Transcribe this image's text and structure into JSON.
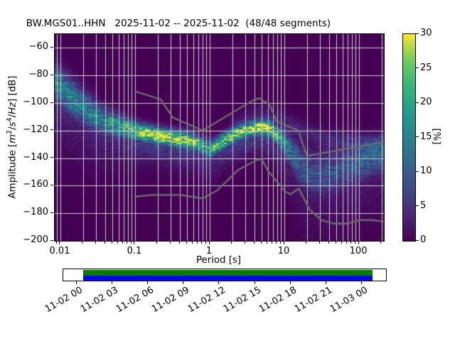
{
  "title": "BW.MGS01..HHN   2025-11-02 -- 2025-11-02  (48/48 segments)",
  "axes": {
    "xlabel": "Period [s]",
    "ylabel": {
      "prefix": "Amplitude [",
      "m": "m",
      "m_exp": "2",
      "slash1": "/",
      "s": "s",
      "s_exp": "4",
      "slash2": "/",
      "hz": "Hz",
      "suffix": "] [dB]"
    },
    "x_tick_labels": [
      "0.01",
      "0.1",
      "1",
      "10",
      "100"
    ],
    "y_tick_labels": [
      "−60",
      "−80",
      "−100",
      "−120",
      "−140",
      "−160",
      "−180",
      "−200"
    ]
  },
  "colorbar": {
    "label": "[%]",
    "tick_labels": [
      "0",
      "5",
      "10",
      "15",
      "20",
      "25",
      "30"
    ],
    "min": 0,
    "max": 30
  },
  "timeline": {
    "tick_labels": [
      "11-02 00",
      "11-02 03",
      "11-02 06",
      "11-02 09",
      "11-02 12",
      "11-02 15",
      "11-02 18",
      "11-02 21",
      "11-03 00"
    ],
    "coverage_top_color": "#008000",
    "coverage_bottom_color": "#0000ff"
  },
  "chart_data": {
    "type": "heatmap",
    "subtype": "ppsd-probability-histogram",
    "station": "BW.MGS01..HHN",
    "date_start": "2025-11-02",
    "date_end": "2025-11-02",
    "segments_used": 48,
    "segments_total": 48,
    "title": "BW.MGS01..HHN   2025-11-02 -- 2025-11-02  (48/48 segments)",
    "xlabel": "Period [s]",
    "ylabel": "Amplitude [m^2/s^4/Hz] [dB]",
    "x_axis": {
      "scale": "log",
      "range_s": [
        0.0084,
        215
      ],
      "major_ticks": [
        0.01,
        0.1,
        1,
        10,
        100
      ]
    },
    "y_axis": {
      "range_db": [
        -200,
        -50
      ],
      "tick_step_db": 20
    },
    "color_axis": {
      "label": "[%]",
      "range_percent": [
        0,
        30
      ],
      "colormap": "viridis"
    },
    "grid": true,
    "legend": "none",
    "mode_curve_fields": [
      "period_s",
      "mode_dB",
      "peak_percent",
      "sigma_dB"
    ],
    "mode_curve": [
      [
        0.0084,
        -86,
        15,
        9
      ],
      [
        0.011,
        -91,
        15,
        9
      ],
      [
        0.018,
        -101,
        14,
        8.5
      ],
      [
        0.034,
        -112,
        15,
        7
      ],
      [
        0.06,
        -116.5,
        18,
        5.5
      ],
      [
        0.1,
        -120.5,
        24,
        4.5
      ],
      [
        0.14,
        -121.8,
        27,
        4
      ],
      [
        0.2,
        -123.7,
        28,
        4
      ],
      [
        0.28,
        -125.3,
        28,
        4
      ],
      [
        0.4,
        -126.4,
        27,
        4
      ],
      [
        0.6,
        -128,
        25,
        4
      ],
      [
        0.8,
        -131.5,
        21,
        4
      ],
      [
        1.05,
        -133.5,
        20,
        4
      ],
      [
        1.35,
        -129.5,
        22,
        4
      ],
      [
        1.8,
        -125.5,
        25,
        3.8
      ],
      [
        2.5,
        -121.5,
        27,
        3.6
      ],
      [
        3.5,
        -119,
        29,
        3.5
      ],
      [
        5.0,
        -117.5,
        30,
        3.5
      ],
      [
        6.5,
        -119.5,
        27,
        3.8
      ],
      [
        8.0,
        -123,
        23,
        4.2
      ],
      [
        10.0,
        -129,
        17,
        5.5
      ],
      [
        13.0,
        -137.5,
        11,
        8
      ],
      [
        17.0,
        -146.5,
        9,
        10
      ],
      [
        24.0,
        -152.5,
        8,
        11
      ],
      [
        40.0,
        -151,
        8,
        11
      ],
      [
        70.0,
        -147,
        9,
        10
      ],
      [
        120.0,
        -142,
        10,
        9
      ],
      [
        215.0,
        -138,
        11,
        8
      ]
    ],
    "upper_band_fields": [
      "period_s",
      "center_dB",
      "peak_percent"
    ],
    "upper_band": [
      [
        1.8,
        -116,
        1.2
      ],
      [
        3.0,
        -110,
        1.8
      ],
      [
        5.0,
        -107,
        2.2
      ],
      [
        8.0,
        -110,
        2.5
      ],
      [
        12.0,
        -116,
        3.0
      ],
      [
        20.0,
        -121,
        3.0
      ],
      [
        35.0,
        -125,
        3.0
      ],
      [
        60.0,
        -127.5,
        3.5
      ],
      [
        120.0,
        -129.5,
        4.0
      ],
      [
        215.0,
        -130,
        4.5
      ]
    ],
    "noise_models": {
      "nhnm": [
        [
          0.1,
          -91.5
        ],
        [
          0.22,
          -97.4
        ],
        [
          0.32,
          -110.5
        ],
        [
          0.8,
          -120.0
        ],
        [
          3.8,
          -98.0
        ],
        [
          4.6,
          -96.5
        ],
        [
          6.3,
          -101.0
        ],
        [
          7.9,
          -113.5
        ],
        [
          15.4,
          -120.0
        ],
        [
          20.0,
          -138.5
        ],
        [
          354.8,
          -126.0
        ]
      ],
      "nlnm": [
        [
          0.1,
          -168.0
        ],
        [
          0.17,
          -166.7
        ],
        [
          0.4,
          -166.7
        ],
        [
          0.8,
          -169.2
        ],
        [
          1.24,
          -163.7
        ],
        [
          2.4,
          -148.6
        ],
        [
          4.3,
          -141.1
        ],
        [
          5.0,
          -141.1
        ],
        [
          6.0,
          -149.0
        ],
        [
          10.0,
          -163.8
        ],
        [
          12.0,
          -166.2
        ],
        [
          15.6,
          -162.1
        ],
        [
          21.9,
          -177.5
        ],
        [
          31.6,
          -185.0
        ],
        [
          45.0,
          -187.5
        ],
        [
          70.0,
          -187.5
        ],
        [
          101.0,
          -185.0
        ],
        [
          154.0,
          -185.0
        ],
        [
          328.0,
          -187.5
        ]
      ]
    },
    "viridis_stops": [
      "#440154",
      "#482878",
      "#3e4989",
      "#31688e",
      "#26828e",
      "#1f9e89",
      "#35b779",
      "#6ece58",
      "#fde725"
    ],
    "background_color": "#440154",
    "grid_color": "#cdcdcd",
    "noise_model_color": "#6f6f6f"
  }
}
